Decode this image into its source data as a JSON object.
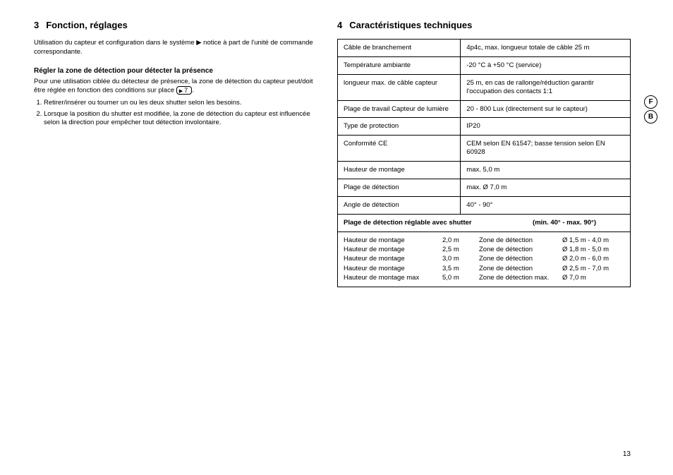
{
  "pageNumber": "13",
  "sideMarkers": [
    "F",
    "B"
  ],
  "left": {
    "heading_num": "3",
    "heading_text": "Fonction, réglages",
    "intro": "Utilisation du capteur et configuration dans le système ▶ notice à part de l'unité de commande correspondante.",
    "subheading": "Régler la zone de détection pour détecter la présence",
    "sub_para_before": "Pour une utilisation ciblée du détecteur de présence, la zone de détection du capteur peut/doit être réglée en fonction des conditions sur place ",
    "ref_label": "7",
    "sub_para_after": ".",
    "list": [
      "Retirer/insérer ou tourner un ou les deux shutter selon les besoins.",
      "Lorsque la position du shutter est modifiée, la zone de détection du capteur est influencée selon la direction pour empêcher tout détection involontaire."
    ]
  },
  "right": {
    "heading_num": "4",
    "heading_text": "Caractéristiques techniques",
    "rows": [
      {
        "label": "Câble de branchement",
        "value": "4p4c, max. longueur totale de câble 25 m"
      },
      {
        "label": "Température ambiante",
        "value": "-20 °C à +50 °C (service)"
      },
      {
        "label": "longueur max. de câble capteur",
        "value": "25 m, en cas de rallonge/réduction garantir l'occupation des contacts 1:1"
      },
      {
        "label": "Plage de travail Capteur de lumière",
        "value": "20 - 800 Lux (directement sur le capteur)"
      },
      {
        "label": "Type de protection",
        "value": "IP20"
      },
      {
        "label": "Conformité CE",
        "value": "CEM selon EN 61547; basse tension selon EN 60928"
      },
      {
        "label": "Hauteur de montage",
        "value": "max. 5,0 m"
      },
      {
        "label": "Plage de détection",
        "value": "max. Ø 7,0 m"
      },
      {
        "label": "Angle de détection",
        "value": "40° - 90°"
      }
    ],
    "shutter_title": "Plage de détection réglable avec shutter",
    "shutter_range": "(min. 40° - max. 90°)",
    "details": [
      {
        "c1": "Hauteur de montage",
        "c2": "2,0 m",
        "c3": "Zone de détection",
        "c4": "Ø 1,5 m - 4,0 m"
      },
      {
        "c1": "Hauteur de montage",
        "c2": "2,5 m",
        "c3": "Zone de détection",
        "c4": "Ø 1,8 m - 5,0 m"
      },
      {
        "c1": "Hauteur de montage",
        "c2": "3,0 m",
        "c3": "Zone de détection",
        "c4": "Ø 2,0 m - 6,0 m"
      },
      {
        "c1": "Hauteur de montage",
        "c2": "3,5 m",
        "c3": "Zone de détection",
        "c4": "Ø 2,5 m - 7,0 m"
      },
      {
        "c1": "Hauteur de montage max",
        "c2": "5,0 m",
        "c3": "Zone de détection max.",
        "c4": "Ø 7,0 m"
      }
    ]
  }
}
